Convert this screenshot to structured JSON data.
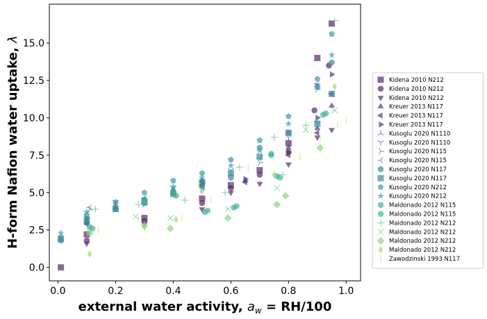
{
  "chart_data": {
    "type": "scatter",
    "xlabel": "external water activity, a_w = RH/100",
    "xlabel_parts": [
      "external water activity, ",
      "a",
      "w",
      " = RH/100"
    ],
    "ylabel": "H-form Nafion water uptake, λ",
    "ylabel_parts": [
      "H-form Nafion water uptake, ",
      "λ"
    ],
    "xlim": [
      -0.03,
      1.05
    ],
    "ylim": [
      -0.9,
      17.6
    ],
    "xticks": [
      0.0,
      0.2,
      0.4,
      0.6,
      0.8,
      1.0
    ],
    "xtick_labels": [
      "0.0",
      "0.2",
      "0.4",
      "0.6",
      "0.8",
      "1.0"
    ],
    "yticks": [
      0.0,
      2.5,
      5.0,
      7.5,
      10.0,
      12.5,
      15.0
    ],
    "ytick_labels": [
      "0.0",
      "2.5",
      "5.0",
      "7.5",
      "10.0",
      "12.5",
      "15.0"
    ],
    "grid": false,
    "legend_position": "right, outside plot",
    "series": [
      {
        "name": "Kidena 2010 N212",
        "marker": "square",
        "color": "#5a2a6e",
        "points": [
          [
            0.01,
            0.0
          ],
          [
            0.1,
            2.2
          ],
          [
            0.3,
            3.3
          ],
          [
            0.5,
            4.6
          ],
          [
            0.6,
            5.5
          ],
          [
            0.7,
            6.5
          ],
          [
            0.8,
            8.3
          ],
          [
            0.9,
            14.0
          ],
          [
            0.95,
            16.3
          ]
        ]
      },
      {
        "name": "Kidena 2010 N212",
        "marker": "circle",
        "color": "#5a2a6e",
        "points": [
          [
            0.1,
            1.8
          ],
          [
            0.3,
            3.1
          ],
          [
            0.5,
            4.3
          ],
          [
            0.6,
            5.3
          ],
          [
            0.7,
            6.2
          ],
          [
            0.8,
            7.7
          ],
          [
            0.89,
            10.5
          ],
          [
            0.94,
            13.5
          ]
        ]
      },
      {
        "name": "Kidena 2010 N212",
        "marker": "triangle-down",
        "color": "#5a2a6e",
        "points": [
          [
            0.1,
            1.6
          ],
          [
            0.3,
            2.9
          ],
          [
            0.5,
            3.9
          ],
          [
            0.6,
            5.0
          ],
          [
            0.7,
            5.6
          ],
          [
            0.8,
            6.9
          ],
          [
            0.9,
            8.7
          ],
          [
            0.95,
            9.2
          ]
        ]
      },
      {
        "name": "Kreuer 2013 N117",
        "marker": "triangle-up",
        "color": "#4a3a7e",
        "points": [
          [
            0.1,
            3.0
          ],
          [
            0.2,
            4.0
          ],
          [
            0.3,
            4.5
          ],
          [
            0.4,
            5.2
          ],
          [
            0.5,
            5.8
          ],
          [
            0.65,
            5.8
          ],
          [
            0.8,
            8.0
          ],
          [
            0.9,
            9.3
          ],
          [
            0.95,
            10.8
          ]
        ]
      },
      {
        "name": "Kreuer 2013 N117",
        "marker": "triangle-left",
        "color": "#4a3a7e",
        "points": [
          [
            0.1,
            2.9
          ],
          [
            0.3,
            4.3
          ],
          [
            0.5,
            5.5
          ],
          [
            0.65,
            5.7
          ],
          [
            0.8,
            7.5
          ],
          [
            0.9,
            9.0
          ],
          [
            0.95,
            11.6
          ]
        ]
      },
      {
        "name": "Kreuer 2013 N117",
        "marker": "triangle-right",
        "color": "#4a3a7e",
        "points": [
          [
            0.1,
            3.3
          ],
          [
            0.3,
            4.5
          ],
          [
            0.5,
            5.6
          ],
          [
            0.65,
            5.9
          ],
          [
            0.8,
            7.7
          ],
          [
            0.9,
            10.0
          ],
          [
            0.95,
            12.9
          ]
        ]
      },
      {
        "name": "Kusoglu 2020 N1110",
        "marker": "tri-down",
        "color": "#5a6a9a",
        "points": [
          [
            0.2,
            4.2
          ],
          [
            0.4,
            5.0
          ],
          [
            0.6,
            6.2
          ],
          [
            0.8,
            8.4
          ],
          [
            0.9,
            12.0
          ]
        ]
      },
      {
        "name": "Kusoglu 2020 N1110",
        "marker": "tri-up",
        "color": "#5a6a9a",
        "points": [
          [
            0.2,
            4.4
          ],
          [
            0.4,
            5.3
          ],
          [
            0.6,
            6.5
          ],
          [
            0.8,
            8.7
          ],
          [
            0.9,
            12.2
          ]
        ]
      },
      {
        "name": "Kusoglu 2020 N115",
        "marker": "tri-left",
        "color": "#4a7a9e",
        "points": [
          [
            0.11,
            3.9
          ],
          [
            0.3,
            4.2
          ],
          [
            0.5,
            5.2
          ],
          [
            0.7,
            7.0
          ],
          [
            0.9,
            11.9
          ]
        ]
      },
      {
        "name": "Kusoglu 2020 N115",
        "marker": "tri-right",
        "color": "#4a7a9e",
        "points": [
          [
            0.11,
            4.0
          ],
          [
            0.3,
            4.6
          ],
          [
            0.5,
            5.4
          ],
          [
            0.7,
            7.3
          ],
          [
            0.9,
            12.3
          ]
        ]
      },
      {
        "name": "Kusoglu 2020 N117",
        "marker": "circle",
        "color": "#3f8aa0",
        "points": [
          [
            0.01,
            1.8
          ],
          [
            0.1,
            3.0
          ],
          [
            0.2,
            3.9
          ],
          [
            0.3,
            4.3
          ],
          [
            0.4,
            5.0
          ],
          [
            0.5,
            5.4
          ],
          [
            0.6,
            6.0
          ],
          [
            0.7,
            8.0
          ],
          [
            0.8,
            9.0
          ],
          [
            0.9,
            12.1
          ],
          [
            0.95,
            13.7
          ]
        ]
      },
      {
        "name": "Kusoglu 2020 N117",
        "marker": "square",
        "color": "#3f8aa0",
        "points": [
          [
            0.01,
            1.9
          ],
          [
            0.1,
            3.2
          ],
          [
            0.2,
            3.9
          ],
          [
            0.3,
            4.4
          ],
          [
            0.4,
            4.9
          ],
          [
            0.5,
            5.7
          ],
          [
            0.6,
            6.3
          ],
          [
            0.7,
            7.4
          ],
          [
            0.8,
            9.0
          ],
          [
            0.9,
            9.6
          ],
          [
            0.95,
            11.6
          ]
        ]
      },
      {
        "name": "Kusoglu 2020 N212",
        "marker": "pentagon",
        "color": "#3d9aa5",
        "points": [
          [
            0.01,
            2.0
          ],
          [
            0.1,
            3.5
          ],
          [
            0.2,
            4.3
          ],
          [
            0.3,
            5.0
          ],
          [
            0.4,
            5.8
          ],
          [
            0.5,
            6.3
          ],
          [
            0.6,
            7.2
          ],
          [
            0.7,
            8.5
          ],
          [
            0.8,
            10.1
          ],
          [
            0.9,
            12.6
          ],
          [
            0.95,
            15.6
          ]
        ]
      },
      {
        "name": "Kusoglu 2020 N212",
        "marker": "star",
        "color": "#3ea0a5",
        "points": [
          [
            0.01,
            2.3
          ],
          [
            0.1,
            3.7
          ],
          [
            0.2,
            4.4
          ],
          [
            0.3,
            4.6
          ],
          [
            0.4,
            5.4
          ],
          [
            0.5,
            6.0
          ],
          [
            0.6,
            6.8
          ],
          [
            0.7,
            7.8
          ],
          [
            0.8,
            9.6
          ],
          [
            0.9,
            9.7
          ],
          [
            0.95,
            14.2
          ]
        ]
      },
      {
        "name": "Maldonado 2012 N115",
        "marker": "hexagon",
        "color": "#3fb0a0",
        "points": [
          [
            0.11,
            2.7
          ],
          [
            0.3,
            4.4
          ],
          [
            0.4,
            5.1
          ],
          [
            0.51,
            3.7
          ],
          [
            0.61,
            4.0
          ],
          [
            0.74,
            7.6
          ],
          [
            0.76,
            6.1
          ],
          [
            0.92,
            10.2
          ]
        ]
      },
      {
        "name": "Maldonado 2012 N115",
        "marker": "hexagon-alt",
        "color": "#45b59a",
        "points": [
          [
            0.12,
            2.6
          ],
          [
            0.3,
            4.3
          ],
          [
            0.41,
            4.8
          ],
          [
            0.52,
            3.8
          ],
          [
            0.62,
            4.1
          ],
          [
            0.74,
            7.5
          ],
          [
            0.77,
            6.0
          ],
          [
            0.93,
            10.3
          ]
        ]
      },
      {
        "name": "Maldonado 2012 N212",
        "marker": "plus",
        "color": "#6cc394",
        "points": [
          [
            0.13,
            3.9
          ],
          [
            0.28,
            4.2
          ],
          [
            0.44,
            4.5
          ],
          [
            0.58,
            5.0
          ],
          [
            0.63,
            6.7
          ],
          [
            0.75,
            8.7
          ],
          [
            0.78,
            6.2
          ],
          [
            0.86,
            9.5
          ],
          [
            0.96,
            16.5
          ]
        ]
      },
      {
        "name": "Maldonado 2012 N212",
        "marker": "x",
        "color": "#7ccd8a",
        "points": [
          [
            0.11,
            2.3
          ],
          [
            0.27,
            3.4
          ],
          [
            0.39,
            3.3
          ],
          [
            0.59,
            3.9
          ],
          [
            0.76,
            5.3
          ],
          [
            0.86,
            9.2
          ],
          [
            0.96,
            10.5
          ]
        ]
      },
      {
        "name": "Maldonado 2012 N212",
        "marker": "diamond",
        "color": "#8cd684",
        "points": [
          [
            0.11,
            2.3
          ],
          [
            0.3,
            2.8
          ],
          [
            0.39,
            2.6
          ],
          [
            0.59,
            3.3
          ],
          [
            0.76,
            4.2
          ],
          [
            0.79,
            4.8
          ],
          [
            0.91,
            8.0
          ]
        ]
      },
      {
        "name": "Maldonado 2012 N212",
        "marker": "thin-diamond",
        "color": "#9ddb78",
        "points": [
          [
            0.11,
            0.9
          ],
          [
            0.3,
            2.7
          ],
          [
            0.41,
            3.2
          ],
          [
            0.5,
            5.1
          ],
          [
            0.75,
            6.2
          ],
          [
            0.96,
            12.1
          ]
        ]
      },
      {
        "name": "Zawodzinski 1993 N117",
        "marker": "vline",
        "color": "#c0e670",
        "points": [
          [
            0.14,
            2.5
          ],
          [
            0.28,
            3.2
          ],
          [
            0.43,
            3.3
          ],
          [
            0.53,
            4.5
          ],
          [
            0.66,
            6.7
          ],
          [
            0.84,
            7.4
          ],
          [
            0.91,
            8.6
          ],
          [
            0.97,
            9.5
          ],
          [
            1.0,
            9.8
          ]
        ]
      }
    ]
  }
}
